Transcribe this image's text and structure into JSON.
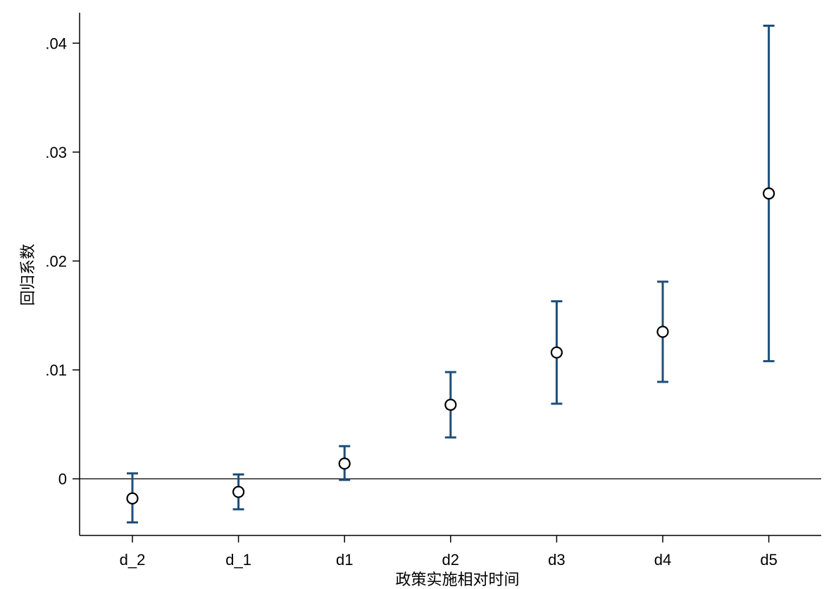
{
  "chart_data": {
    "type": "scatter",
    "title": "",
    "xlabel": "政策实施相对时间",
    "ylabel": "回归系数",
    "categories": [
      "d_2",
      "d_1",
      "d1",
      "d2",
      "d3",
      "d4",
      "d5"
    ],
    "series": [
      {
        "values": [
          -0.0018,
          -0.0012,
          0.0014,
          0.0068,
          0.0116,
          0.0135,
          0.0262
        ],
        "ci_lower": [
          -0.004,
          -0.0028,
          -0.0001,
          0.0038,
          0.0069,
          0.0089,
          0.0108
        ],
        "ci_upper": [
          0.0005,
          0.0004,
          0.003,
          0.0098,
          0.0163,
          0.0181,
          0.0416
        ]
      }
    ],
    "ylim": [
      -0.0052,
      0.0428
    ],
    "yticks": [
      0,
      0.01,
      0.02,
      0.03,
      0.04
    ],
    "ytick_labels": [
      "0",
      ".01",
      ".02",
      ".03",
      ".04"
    ],
    "reference_line_y": 0,
    "grid": false,
    "legend": "none",
    "colors": {
      "errorbar": "#1f4e79",
      "marker": "#000000",
      "axis": "#000000"
    }
  }
}
